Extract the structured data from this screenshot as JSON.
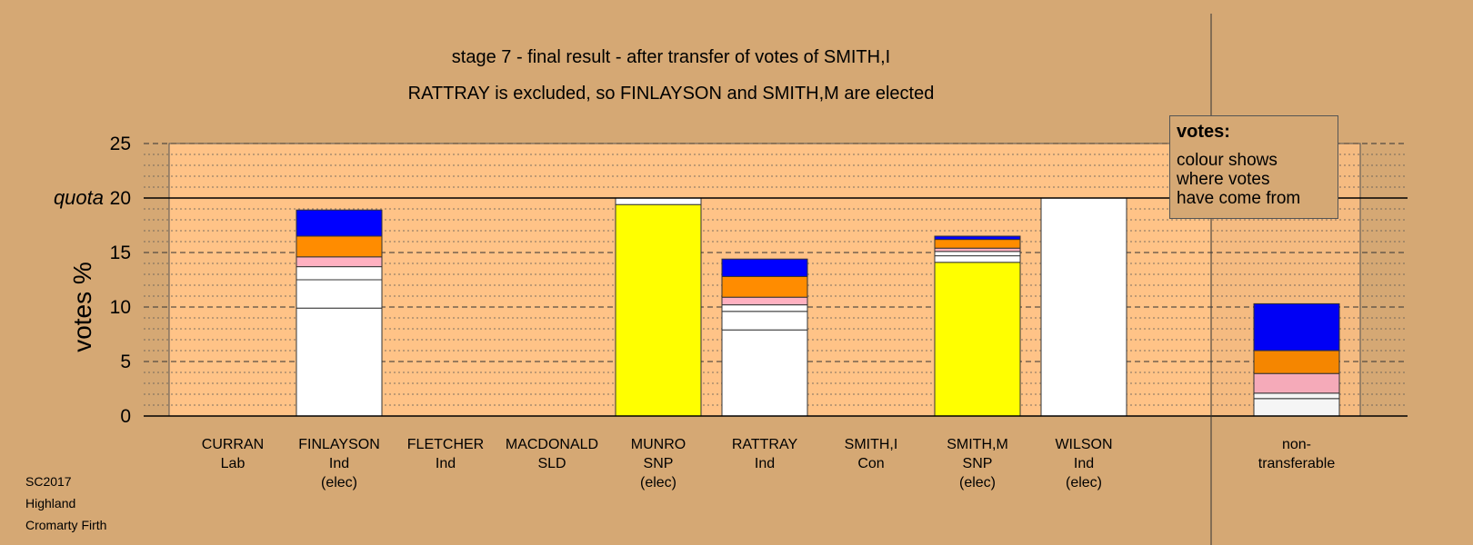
{
  "titles": {
    "line1": "stage 7 - final result - after transfer of votes of SMITH,I",
    "line2": "RATTRAY is excluded, so FINLAYSON and SMITH,M are elected"
  },
  "legend": {
    "title": "votes:",
    "lines": [
      "colour shows",
      "where votes",
      "have come from"
    ]
  },
  "footer": [
    "SC2017",
    "Highland",
    "Cromarty Firth"
  ],
  "colors": {
    "background": "#D5A874",
    "plot_area": "#FFC387",
    "snp": "#FFFF00",
    "ind": "#FFFFFF",
    "con": "#0000FF",
    "lab": "#FF8C00",
    "sld": "#FFB1C1"
  },
  "chart_data": {
    "type": "bar",
    "stacked": true,
    "ylabel": "votes %",
    "quota_label": "quota",
    "quota": 20,
    "ylim": [
      0,
      25
    ],
    "yticks": [
      0,
      5,
      10,
      15,
      20,
      25
    ],
    "grid": "dashed major lines every 5, dotted minor lines every 1",
    "categories": [
      {
        "lines": [
          "CURRAN",
          "Lab"
        ],
        "segments": []
      },
      {
        "lines": [
          "FINLAYSON",
          "Ind",
          "(elec)"
        ],
        "segments": [
          {
            "value": 9.9,
            "color": "#FFFFFF"
          },
          {
            "value": 2.6,
            "color": "#FFFFFF"
          },
          {
            "value": 1.2,
            "color": "#FFFFFF"
          },
          {
            "value": 0.9,
            "color": "#FFB1C1"
          },
          {
            "value": 1.9,
            "color": "#FF8C00"
          },
          {
            "value": 2.4,
            "color": "#0000FF"
          }
        ]
      },
      {
        "lines": [
          "FLETCHER",
          "Ind"
        ],
        "segments": []
      },
      {
        "lines": [
          "MACDONALD",
          "SLD"
        ],
        "segments": []
      },
      {
        "lines": [
          "MUNRO",
          "SNP",
          "(elec)"
        ],
        "segments": [
          {
            "value": 19.4,
            "color": "#FFFF00"
          },
          {
            "value": 0.6,
            "color": "#FFFFFF"
          }
        ]
      },
      {
        "lines": [
          "RATTRAY",
          "Ind"
        ],
        "segments": [
          {
            "value": 7.9,
            "color": "#FFFFFF"
          },
          {
            "value": 1.7,
            "color": "#FFFFFF"
          },
          {
            "value": 0.6,
            "color": "#FFFFFF"
          },
          {
            "value": 0.7,
            "color": "#FFB1C1"
          },
          {
            "value": 1.9,
            "color": "#FF8C00"
          },
          {
            "value": 1.6,
            "color": "#0000FF"
          }
        ]
      },
      {
        "lines": [
          "SMITH,I",
          "Con"
        ],
        "segments": []
      },
      {
        "lines": [
          "SMITH,M",
          "SNP",
          "(elec)"
        ],
        "segments": [
          {
            "value": 14.1,
            "color": "#FFFF00"
          },
          {
            "value": 0.6,
            "color": "#FFFFFF"
          },
          {
            "value": 0.4,
            "color": "#FFFFFF"
          },
          {
            "value": 0.3,
            "color": "#FFB1C1"
          },
          {
            "value": 0.8,
            "color": "#FF8C00"
          },
          {
            "value": 0.3,
            "color": "#0000FF"
          }
        ]
      },
      {
        "lines": [
          "WILSON",
          "Ind",
          "(elec)"
        ],
        "segments": [
          {
            "value": 20.0,
            "color": "#FFFFFF"
          }
        ]
      },
      {
        "lines": [
          "non-",
          "transferable"
        ],
        "segments": [
          {
            "value": 1.6,
            "color": "#FFFFFF"
          },
          {
            "value": 0.5,
            "color": "#FFFFFF"
          },
          {
            "value": 1.8,
            "color": "#FFB1C1"
          },
          {
            "value": 2.1,
            "color": "#FF8C00"
          },
          {
            "value": 4.3,
            "color": "#0000FF"
          }
        ]
      }
    ]
  }
}
